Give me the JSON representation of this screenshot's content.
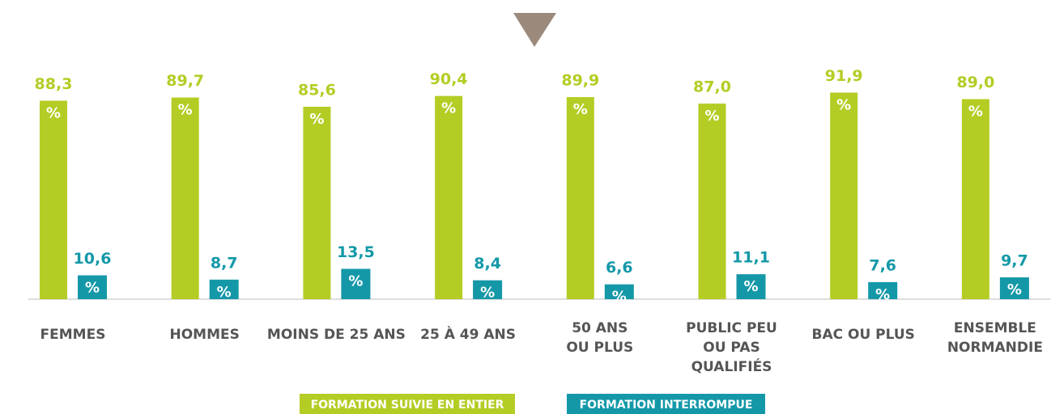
{
  "chart_data": {
    "type": "bar",
    "categories": [
      "FEMMES",
      "HOMMES",
      "MOINS DE 25 ANS",
      "25 À 49 ANS",
      "50 ANS\nOU PLUS",
      "PUBLIC PEU\nOU PAS\nQUALIFIÉS",
      "BAC OU PLUS",
      "ENSEMBLE\nNORMANDIE"
    ],
    "series": [
      {
        "name": "FORMATION SUIVIE EN ENTIER",
        "color": "#b5cc24",
        "values": [
          88.3,
          89.7,
          85.6,
          90.4,
          89.9,
          87.0,
          91.9,
          89.0
        ],
        "value_labels": [
          "88,3",
          "89,7",
          "85,6",
          "90,4",
          "89,9",
          "87,0",
          "91,9",
          "89,0"
        ]
      },
      {
        "name": "FORMATION INTERROMPUE",
        "color": "#1498a8",
        "values": [
          10.6,
          8.7,
          13.5,
          8.4,
          6.6,
          11.1,
          7.6,
          9.7
        ],
        "value_labels": [
          "10,6",
          "8,7",
          "13,5",
          "8,4",
          "6,6",
          "11,1",
          "7,6",
          "9,7"
        ]
      }
    ],
    "unit": "%",
    "ylim": [
      0,
      100
    ]
  }
}
